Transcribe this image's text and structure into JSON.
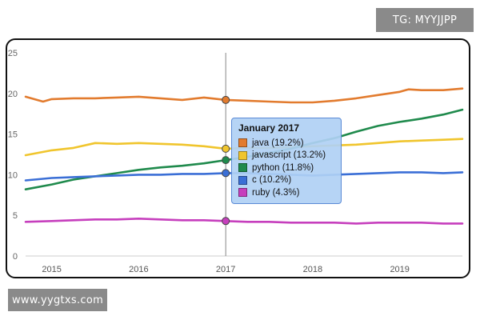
{
  "watermarks": {
    "top_right": "TG: MYYJJPP",
    "bottom_left": "www.yygtxs.com"
  },
  "chart_data": {
    "type": "line",
    "title": "",
    "xlabel": "",
    "ylabel": "",
    "xlim": [
      2014.7,
      2019.72
    ],
    "ylim": [
      0,
      25
    ],
    "x_ticks": [
      "2015",
      "2016",
      "2017",
      "2018",
      "2019"
    ],
    "y_ticks": [
      "0",
      "5",
      "10",
      "15",
      "20",
      "25"
    ],
    "grid": false,
    "crosshair_x": 2017,
    "series": [
      {
        "name": "java",
        "color": "#e27b2e",
        "x": [
          2014.7,
          2014.9,
          2015.0,
          2015.25,
          2015.5,
          2015.75,
          2016.0,
          2016.25,
          2016.5,
          2016.75,
          2017.0,
          2017.25,
          2017.5,
          2017.75,
          2018.0,
          2018.25,
          2018.5,
          2018.75,
          2019.0,
          2019.1,
          2019.25,
          2019.5,
          2019.72
        ],
        "y": [
          19.6,
          19.0,
          19.3,
          19.4,
          19.4,
          19.5,
          19.6,
          19.4,
          19.2,
          19.5,
          19.2,
          19.1,
          19.0,
          18.9,
          18.9,
          19.1,
          19.4,
          19.8,
          20.2,
          20.5,
          20.4,
          20.4,
          20.6
        ]
      },
      {
        "name": "javascript",
        "color": "#f0c52d",
        "x": [
          2014.7,
          2015.0,
          2015.25,
          2015.5,
          2015.75,
          2016.0,
          2016.25,
          2016.5,
          2016.75,
          2017.0,
          2017.25,
          2017.5,
          2017.75,
          2018.0,
          2018.25,
          2018.5,
          2018.75,
          2019.0,
          2019.25,
          2019.5,
          2019.72
        ],
        "y": [
          12.4,
          13.0,
          13.3,
          13.9,
          13.8,
          13.9,
          13.8,
          13.7,
          13.5,
          13.2,
          13.3,
          13.3,
          13.4,
          13.5,
          13.6,
          13.7,
          13.9,
          14.1,
          14.2,
          14.3,
          14.4
        ]
      },
      {
        "name": "python",
        "color": "#1f8a4c",
        "x": [
          2014.7,
          2015.0,
          2015.25,
          2015.5,
          2015.75,
          2016.0,
          2016.25,
          2016.5,
          2016.75,
          2017.0,
          2017.25,
          2017.5,
          2017.75,
          2018.0,
          2018.25,
          2018.5,
          2018.75,
          2019.0,
          2019.25,
          2019.5,
          2019.72
        ],
        "y": [
          8.2,
          8.8,
          9.4,
          9.8,
          10.2,
          10.6,
          10.9,
          11.1,
          11.4,
          11.8,
          12.2,
          12.7,
          13.2,
          13.9,
          14.5,
          15.3,
          16.0,
          16.5,
          16.9,
          17.4,
          18.0
        ]
      },
      {
        "name": "c",
        "color": "#3b6fd6",
        "x": [
          2014.7,
          2015.0,
          2015.25,
          2015.5,
          2015.75,
          2016.0,
          2016.25,
          2016.5,
          2016.75,
          2017.0,
          2017.25,
          2017.5,
          2017.75,
          2018.0,
          2018.25,
          2018.5,
          2018.75,
          2019.0,
          2019.25,
          2019.5,
          2019.72
        ],
        "y": [
          9.3,
          9.6,
          9.7,
          9.8,
          9.9,
          10.0,
          10.0,
          10.1,
          10.1,
          10.2,
          10.2,
          10.1,
          10.0,
          9.9,
          10.0,
          10.1,
          10.2,
          10.3,
          10.3,
          10.2,
          10.3
        ]
      },
      {
        "name": "ruby",
        "color": "#c63fbd",
        "x": [
          2014.7,
          2015.0,
          2015.25,
          2015.5,
          2015.75,
          2016.0,
          2016.25,
          2016.5,
          2016.75,
          2017.0,
          2017.25,
          2017.5,
          2017.75,
          2018.0,
          2018.25,
          2018.5,
          2018.75,
          2019.0,
          2019.25,
          2019.5,
          2019.72
        ],
        "y": [
          4.2,
          4.3,
          4.4,
          4.5,
          4.5,
          4.6,
          4.5,
          4.4,
          4.4,
          4.3,
          4.2,
          4.2,
          4.1,
          4.1,
          4.1,
          4.0,
          4.1,
          4.1,
          4.1,
          4.0,
          4.0
        ]
      }
    ],
    "tooltip": {
      "title": "January 2017",
      "items": [
        {
          "label": "java (19.2%)",
          "color": "#e27b2e"
        },
        {
          "label": "javascript (13.2%)",
          "color": "#f0c52d"
        },
        {
          "label": "python (11.8%)",
          "color": "#1f8a4c"
        },
        {
          "label": "c (10.2%)",
          "color": "#3b6fd6"
        },
        {
          "label": "ruby (4.3%)",
          "color": "#c63fbd"
        }
      ]
    },
    "highlight_points": [
      {
        "series": "java",
        "x": 2017,
        "y": 19.2
      },
      {
        "series": "javascript",
        "x": 2017,
        "y": 13.2
      },
      {
        "series": "python",
        "x": 2017,
        "y": 11.8
      },
      {
        "series": "c",
        "x": 2017,
        "y": 10.2
      },
      {
        "series": "ruby",
        "x": 2017,
        "y": 4.3
      }
    ]
  }
}
